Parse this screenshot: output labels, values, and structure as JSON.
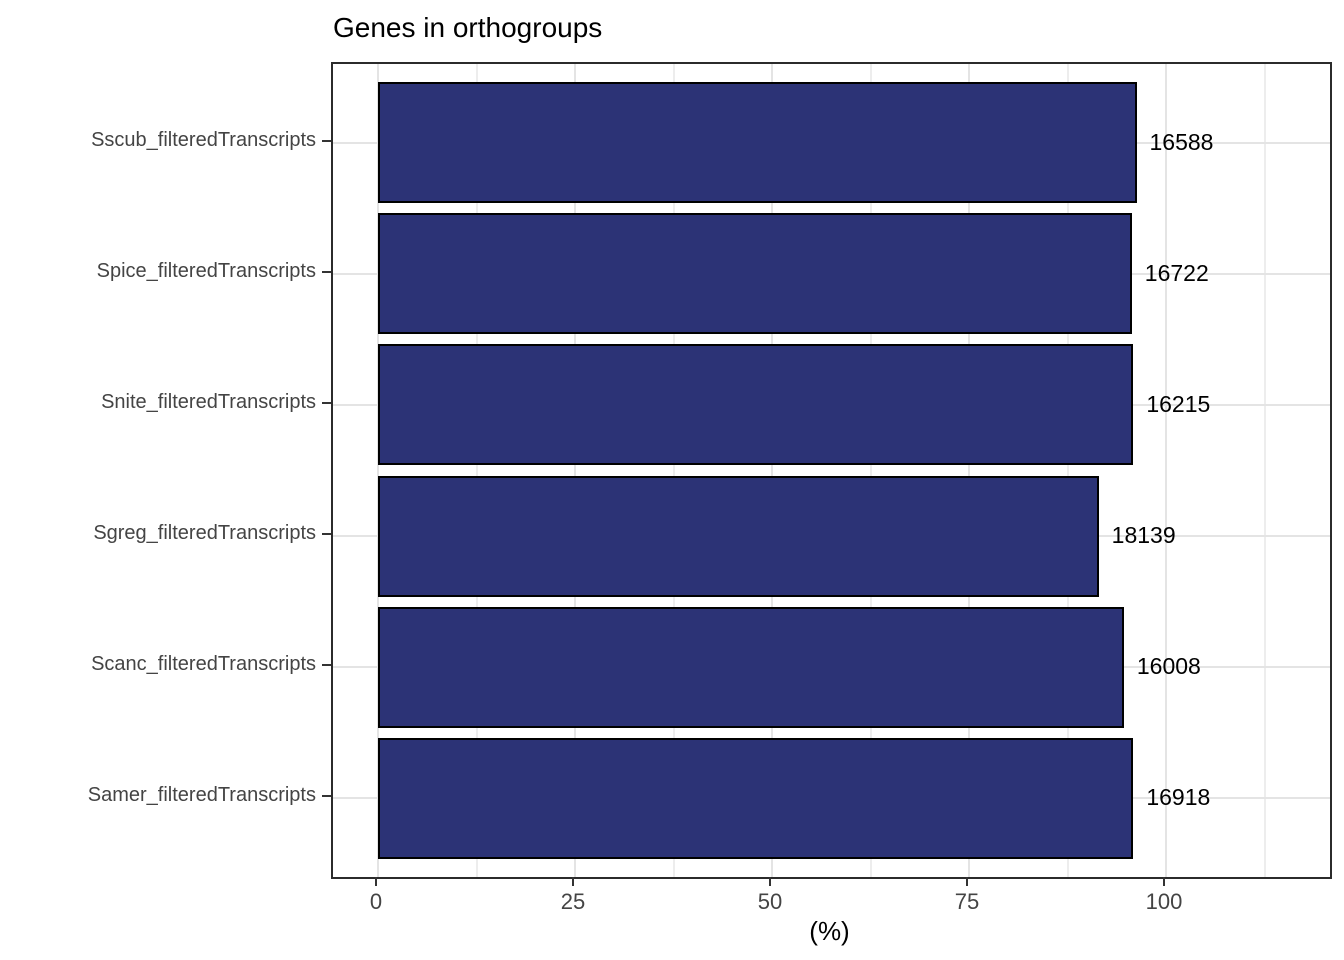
{
  "title": "Genes in orthogroups",
  "chart_data": {
    "type": "bar",
    "orientation": "horizontal",
    "title": "Genes in orthogroups",
    "xlabel": "(%)",
    "ylabel": "",
    "categories": [
      "Sscub_filteredTranscripts",
      "Spice_filteredTranscripts",
      "Snite_filteredTranscripts",
      "Sgreg_filteredTranscripts",
      "Scanc_filteredTranscripts",
      "Samer_filteredTranscripts"
    ],
    "values_percent": [
      96.2,
      95.6,
      95.8,
      91.4,
      94.6,
      95.8
    ],
    "bar_value_labels": [
      "16588",
      "16722",
      "16215",
      "18139",
      "16008",
      "16918"
    ],
    "x_ticks": [
      0,
      25,
      50,
      75,
      100
    ],
    "x_minor_gridlines": [
      12.5,
      37.5,
      62.5,
      87.5,
      112.5
    ],
    "x_axis_range": [
      -5.75,
      120.75
    ],
    "grid": "x major+minor, y major at category centers",
    "legend_position": "none"
  },
  "colors": {
    "background": "#FFFFFF",
    "panel_background": "#FFFFFF",
    "panel_border": "#2B2B2B",
    "grid_major": "#E4E4E4",
    "grid_minor": "#EDEDED",
    "bar_fill": "#2C3376",
    "bar_border": "#000000",
    "axis_text": "#444444",
    "tick_mark": "#333333",
    "title_text": "#000000",
    "value_label": "#000000"
  }
}
